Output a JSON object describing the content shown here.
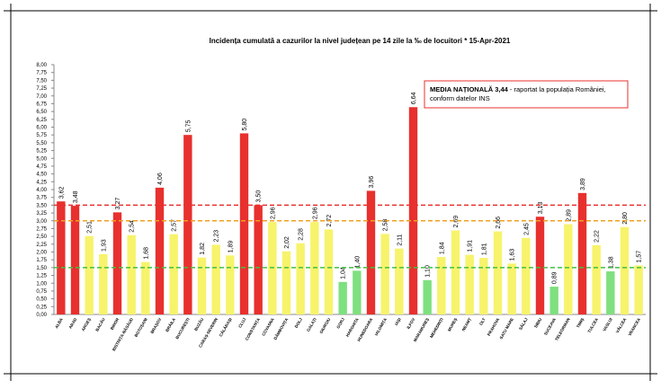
{
  "chart_data": {
    "type": "bar",
    "title": "Incidența cumulată a cazurilor la nivel județean pe 14 zile  la ‰ de locuitori  *  15-Apr-2021",
    "categories": [
      "ALBA",
      "ARAD",
      "ARGEȘ",
      "BACĂU",
      "BIHOR",
      "BISTRIȚA-NĂSĂUD",
      "BOTOȘANI",
      "BRAȘOV",
      "BRĂILA",
      "BUCUREȘTI",
      "BUZĂU",
      "CARAȘ-SEVERIN",
      "CĂLĂRAȘI",
      "CLUJ",
      "CONSTANȚA",
      "COVASNA",
      "DÂMBOVIȚA",
      "DOLJ",
      "GALAȚI",
      "GIURGIU",
      "GORJ",
      "HARGHITA",
      "HUNEDOARA",
      "IALOMIȚA",
      "IAȘI",
      "ILFOV",
      "MARAMUREȘ",
      "MEHEDINȚI",
      "MUREȘ",
      "NEAMȚ",
      "OLT",
      "PRAHOVA",
      "SATU MARE",
      "SĂLAJ",
      "SIBIU",
      "SUCEAVA",
      "TELEORMAN",
      "TIMIȘ",
      "TULCEA",
      "VASLUI",
      "VÂLCEA",
      "VRANCEA"
    ],
    "values": [
      3.62,
      3.48,
      2.51,
      1.93,
      3.27,
      2.54,
      1.68,
      4.06,
      2.57,
      5.75,
      1.82,
      2.23,
      1.89,
      5.8,
      3.5,
      2.96,
      2.02,
      2.28,
      2.96,
      2.72,
      1.04,
      1.4,
      3.96,
      2.58,
      2.11,
      6.64,
      1.1,
      1.84,
      2.69,
      1.91,
      1.81,
      2.66,
      1.63,
      2.45,
      3.13,
      0.89,
      2.89,
      3.89,
      2.22,
      1.38,
      2.8,
      1.57
    ],
    "value_labels": [
      "3,62",
      "3,48",
      "2,51",
      "1,93",
      "3,27",
      "2,54",
      "1,68",
      "4,06",
      "2,57",
      "5,75",
      "1,82",
      "2,23",
      "1,89",
      "5,80",
      "3,50",
      "2,96",
      "2,02",
      "2,28",
      "2,96",
      "2,72",
      "1,04",
      "1,40",
      "3,96",
      "2,58",
      "2,11",
      "6,64",
      "1,10",
      "1,84",
      "2,69",
      "1,91",
      "1,81",
      "2,66",
      "1,63",
      "2,45",
      "3,13",
      "0,89",
      "2,89",
      "3,89",
      "2,22",
      "1,38",
      "2,80",
      "1,57"
    ],
    "colors": [
      "#e8302e",
      "#e8302e",
      "#f7f36b",
      "#f7f36b",
      "#e8302e",
      "#f7f36b",
      "#f7f36b",
      "#e8302e",
      "#f7f36b",
      "#e8302e",
      "#f7f36b",
      "#f7f36b",
      "#f7f36b",
      "#e8302e",
      "#e8302e",
      "#f7f36b",
      "#f7f36b",
      "#f7f36b",
      "#f7f36b",
      "#f7f36b",
      "#7fe07f",
      "#7fe07f",
      "#e8302e",
      "#f7f36b",
      "#f7f36b",
      "#e8302e",
      "#7fe07f",
      "#f7f36b",
      "#f7f36b",
      "#f7f36b",
      "#f7f36b",
      "#f7f36b",
      "#f7f36b",
      "#f7f36b",
      "#e8302e",
      "#7fe07f",
      "#f7f36b",
      "#e8302e",
      "#f7f36b",
      "#7fe07f",
      "#f7f36b",
      "#f7f36b"
    ],
    "ylim": [
      0,
      8
    ],
    "yticks": [
      {
        "value": 0,
        "label": "0,00"
      },
      {
        "value": 0.25,
        "label": "0,25"
      },
      {
        "value": 0.5,
        "label": "0,50"
      },
      {
        "value": 0.75,
        "label": "0,75"
      },
      {
        "value": 1,
        "label": "1,00"
      },
      {
        "value": 1.25,
        "label": "1,25"
      },
      {
        "value": 1.5,
        "label": "1,50"
      },
      {
        "value": 1.75,
        "label": "1,75"
      },
      {
        "value": 2,
        "label": "2,00"
      },
      {
        "value": 2.25,
        "label": "2,25"
      },
      {
        "value": 2.5,
        "label": "2,50"
      },
      {
        "value": 2.75,
        "label": "2,75"
      },
      {
        "value": 3,
        "label": "3,00"
      },
      {
        "value": 3.25,
        "label": "3,25"
      },
      {
        "value": 3.5,
        "label": "3,50"
      },
      {
        "value": 3.75,
        "label": "3,75"
      },
      {
        "value": 4,
        "label": "4,00"
      },
      {
        "value": 4.25,
        "label": "4,25"
      },
      {
        "value": 4.5,
        "label": "4,50"
      },
      {
        "value": 4.75,
        "label": "4,75"
      },
      {
        "value": 5,
        "label": "5,00"
      },
      {
        "value": 5.25,
        "label": "5,25"
      },
      {
        "value": 5.5,
        "label": "5,50"
      },
      {
        "value": 5.75,
        "label": "5,75"
      },
      {
        "value": 6,
        "label": "6,00"
      },
      {
        "value": 6.25,
        "label": "6,25"
      },
      {
        "value": 6.5,
        "label": "6,50"
      },
      {
        "value": 6.75,
        "label": "6,75"
      },
      {
        "value": 7,
        "label": "7,00"
      },
      {
        "value": 7.25,
        "label": "7,25"
      },
      {
        "value": 7.5,
        "label": "7,50"
      },
      {
        "value": 7.75,
        "label": "7,75"
      },
      {
        "value": 8,
        "label": "8,00"
      }
    ],
    "reference_lines": [
      {
        "value": 3.5,
        "color": "#e8302e"
      },
      {
        "value": 3,
        "color": "#f0a020"
      },
      {
        "value": 1.5,
        "color": "#40c040"
      }
    ],
    "annotation": {
      "bold": "MEDIA NAȚIONALĂ 3,44",
      "lines": [
        "- raportat la populația României,",
        "conform datelor INS"
      ]
    }
  }
}
